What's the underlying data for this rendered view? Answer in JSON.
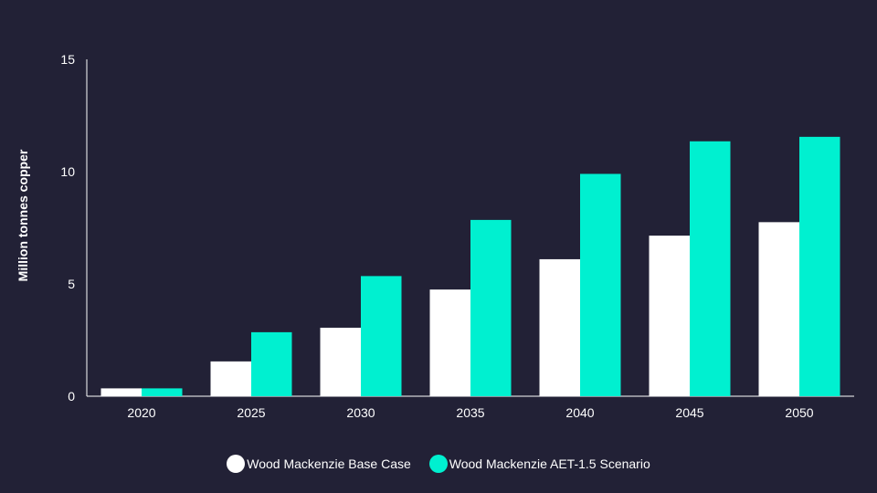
{
  "chart_data": {
    "type": "bar",
    "title": "",
    "xlabel": "",
    "ylabel": "Million tonnes copper",
    "ylim": [
      0,
      15
    ],
    "yticks": [
      0,
      5,
      10,
      15
    ],
    "ytick_labels": [
      "0",
      "5",
      "10",
      "15"
    ],
    "categories": [
      "2020",
      "2025",
      "2030",
      "2035",
      "2040",
      "2045",
      "2050"
    ],
    "series": [
      {
        "name": "Wood Mackenzie Base Case",
        "color": "#ffffff",
        "values": [
          0.35,
          1.55,
          3.05,
          4.75,
          6.1,
          7.15,
          7.75
        ]
      },
      {
        "name": "Wood Mackenzie AET-1.5 Scenario",
        "color": "#00f0d0",
        "values": [
          0.35,
          2.85,
          5.35,
          7.85,
          9.9,
          11.35,
          11.55
        ]
      }
    ],
    "grid": false,
    "legend_position": "bottom-center"
  },
  "colors": {
    "background": "#222136",
    "axis": "#ffffff"
  }
}
